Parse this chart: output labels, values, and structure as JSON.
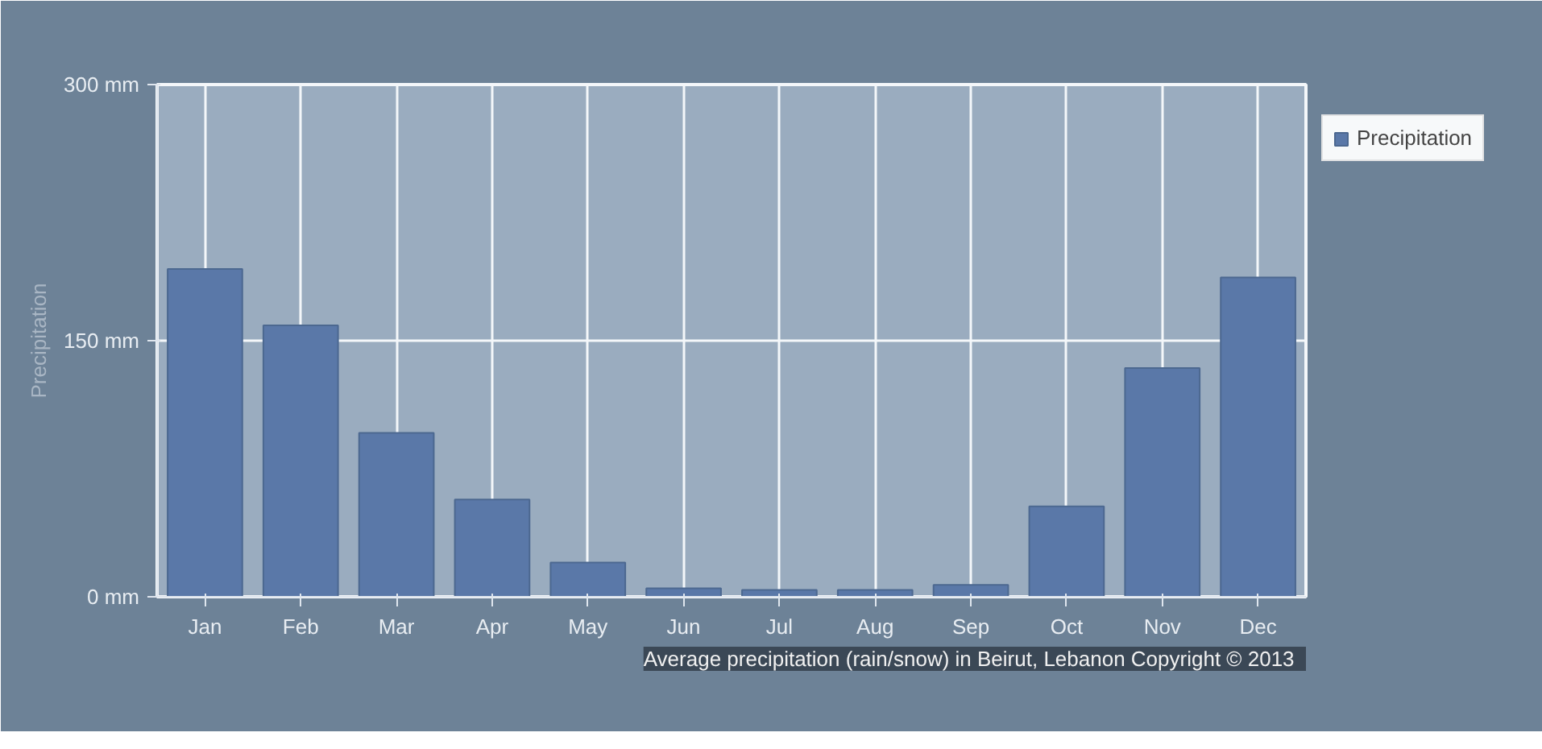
{
  "chart_data": {
    "type": "bar",
    "ylabel": "Precipitation",
    "categories": [
      "Jan",
      "Feb",
      "Mar",
      "Apr",
      "May",
      "Jun",
      "Jul",
      "Aug",
      "Sep",
      "Oct",
      "Nov",
      "Dec"
    ],
    "series": [
      {
        "name": "Precipitation",
        "color": "#5a78a8",
        "values": [
          192,
          159,
          96,
          57,
          20,
          5,
          4,
          4,
          7,
          53,
          134,
          187
        ]
      }
    ],
    "ylim": [
      0,
      300
    ],
    "yticks": [
      {
        "value": 0,
        "label": "0 mm"
      },
      {
        "value": 150,
        "label": "150 mm"
      },
      {
        "value": 300,
        "label": "300 mm"
      }
    ],
    "grid": true,
    "legend": "top right",
    "annotations": [
      "Average precipitation (rain/snow) in Beirut, Lebanon",
      "Copyright © 2013"
    ]
  }
}
